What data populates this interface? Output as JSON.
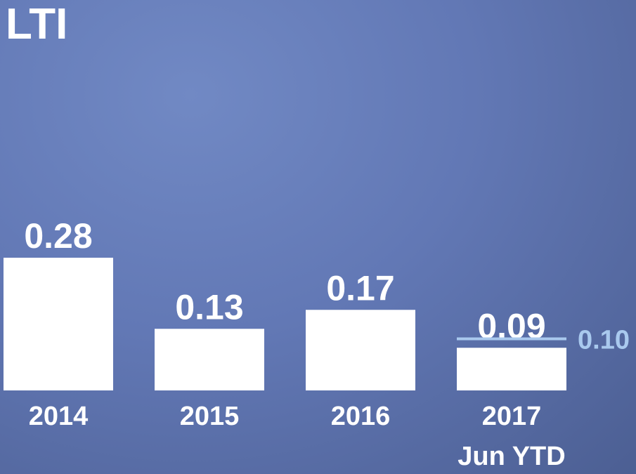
{
  "chart_data": {
    "type": "bar",
    "title": "LTI",
    "categories": [
      [
        "2014"
      ],
      [
        "2015"
      ],
      [
        "2016"
      ],
      [
        "2017",
        "Jun YTD"
      ]
    ],
    "values": [
      0.28,
      0.13,
      0.17,
      0.09
    ],
    "value_labels": [
      "0.28",
      "0.13",
      "0.17",
      "0.09"
    ],
    "target": {
      "value": 0.1,
      "label": "0.10",
      "category_index": 3
    },
    "grid": false,
    "legend": "none",
    "colors": {
      "bar": "#ffffff",
      "target": "#a9c9ee",
      "text": "#ffffff"
    }
  }
}
